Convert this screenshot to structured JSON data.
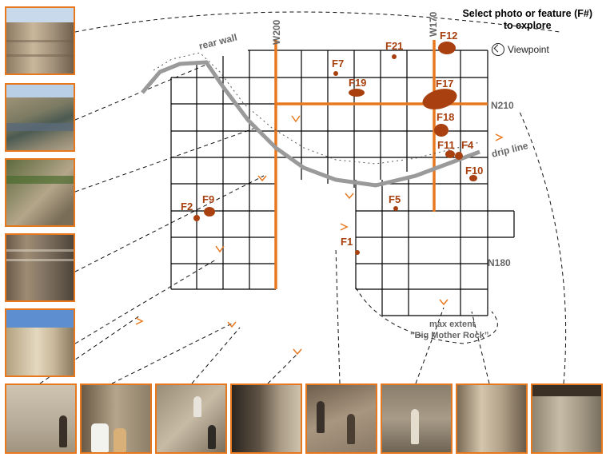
{
  "header": {
    "line1": "Select photo or feature (F#)",
    "line2": "to explore"
  },
  "viewpoint_legend": {
    "label": "Viewpoint",
    "icon": "viewpoint-icon"
  },
  "grid_labels": {
    "w200": "W200",
    "w170": "W170",
    "n210": "N210",
    "n180": "N180"
  },
  "map_labels": {
    "rear_wall": "rear wall",
    "drip_line": "drip line",
    "max_extent": "max extent",
    "big_mother_rock": "“Big Mother Rock”"
  },
  "features": [
    {
      "id": "F1",
      "label": "F1"
    },
    {
      "id": "F2",
      "label": "F2"
    },
    {
      "id": "F4",
      "label": "F4"
    },
    {
      "id": "F5",
      "label": "F5"
    },
    {
      "id": "F7",
      "label": "F7"
    },
    {
      "id": "F9",
      "label": "F9"
    },
    {
      "id": "F10",
      "label": "F10"
    },
    {
      "id": "F11",
      "label": "F11"
    },
    {
      "id": "F12",
      "label": "F12"
    },
    {
      "id": "F17",
      "label": "F17"
    },
    {
      "id": "F18",
      "label": "F18"
    },
    {
      "id": "F19",
      "label": "F19"
    },
    {
      "id": "F21",
      "label": "F21"
    }
  ],
  "colors": {
    "accent_orange": "#e8781e",
    "feature_brown": "#a8400f",
    "grid_line": "#000000",
    "wall_gray": "#8a8a8a"
  }
}
